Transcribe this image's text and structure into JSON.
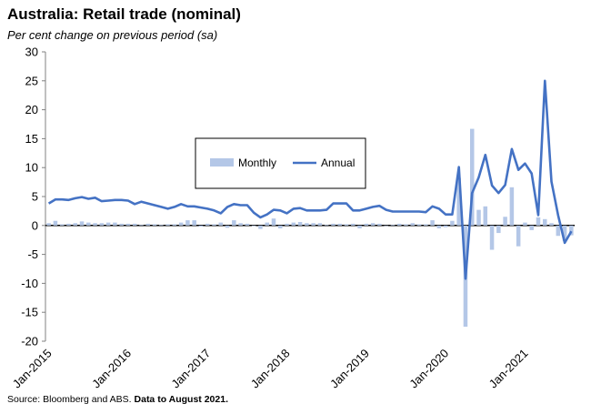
{
  "title": "Australia: Retail trade (nominal)",
  "subtitle": "Per cent change on previous period (sa)",
  "source_text": "Source: Bloomberg and ABS.",
  "source_bold": "Data to August 2021.",
  "colors": {
    "monthly": "#b4c7e7",
    "annual": "#4472c4"
  },
  "chart_data": {
    "type": "bar+line",
    "ylim": [
      -20,
      30
    ],
    "yticks": [
      -20,
      -15,
      -10,
      -5,
      0,
      5,
      10,
      15,
      20,
      25,
      30
    ],
    "xtick_labels": [
      "Jan-2015",
      "Jan-2016",
      "Jan-2017",
      "Jan-2018",
      "Jan-2019",
      "Jan-2020",
      "Jan-2021"
    ],
    "legend": {
      "position": "center",
      "entries": [
        "Monthly",
        "Annual"
      ]
    },
    "x": [
      "Jan-2015",
      "Feb-2015",
      "Mar-2015",
      "Apr-2015",
      "May-2015",
      "Jun-2015",
      "Jul-2015",
      "Aug-2015",
      "Sep-2015",
      "Oct-2015",
      "Nov-2015",
      "Dec-2015",
      "Jan-2016",
      "Feb-2016",
      "Mar-2016",
      "Apr-2016",
      "May-2016",
      "Jun-2016",
      "Jul-2016",
      "Aug-2016",
      "Sep-2016",
      "Oct-2016",
      "Nov-2016",
      "Dec-2016",
      "Jan-2017",
      "Feb-2017",
      "Mar-2017",
      "Apr-2017",
      "May-2017",
      "Jun-2017",
      "Jul-2017",
      "Aug-2017",
      "Sep-2017",
      "Oct-2017",
      "Nov-2017",
      "Dec-2017",
      "Jan-2018",
      "Feb-2018",
      "Mar-2018",
      "Apr-2018",
      "May-2018",
      "Jun-2018",
      "Jul-2018",
      "Aug-2018",
      "Sep-2018",
      "Oct-2018",
      "Nov-2018",
      "Dec-2018",
      "Jan-2019",
      "Feb-2019",
      "Mar-2019",
      "Apr-2019",
      "May-2019",
      "Jun-2019",
      "Jul-2019",
      "Aug-2019",
      "Sep-2019",
      "Oct-2019",
      "Nov-2019",
      "Dec-2019",
      "Jan-2020",
      "Feb-2020",
      "Mar-2020",
      "Apr-2020",
      "May-2020",
      "Jun-2020",
      "Jul-2020",
      "Aug-2020",
      "Sep-2020",
      "Oct-2020",
      "Nov-2020",
      "Dec-2020",
      "Jan-2021",
      "Feb-2021",
      "Mar-2021",
      "Apr-2021",
      "May-2021",
      "Jun-2021",
      "Jul-2021",
      "Aug-2021"
    ],
    "series": [
      {
        "name": "Monthly",
        "kind": "bar",
        "values": [
          0.4,
          0.8,
          0.2,
          0.3,
          0.4,
          0.7,
          0.5,
          0.4,
          0.4,
          0.5,
          0.5,
          0.3,
          0.3,
          0.3,
          0.1,
          0.3,
          0.2,
          0.1,
          0.2,
          0.2,
          0.5,
          0.9,
          0.9,
          -0.2,
          0.3,
          0.2,
          0.5,
          -0.4,
          0.9,
          0.4,
          0.3,
          -0.1,
          -0.6,
          0.5,
          1.2,
          -0.5,
          0.3,
          0.5,
          0.6,
          0.4,
          0.4,
          0.4,
          0.1,
          0.3,
          0.3,
          0.2,
          0.3,
          -0.5,
          0.3,
          0.4,
          0.3,
          0.0,
          0.1,
          0.3,
          0.2,
          0.4,
          0.2,
          0.2,
          0.9,
          -0.5,
          -0.3,
          0.8,
          8.2,
          -17.5,
          16.7,
          2.7,
          3.3,
          -4.2,
          -1.3,
          1.5,
          6.6,
          -3.6,
          0.5,
          -0.8,
          1.4,
          1.1,
          0.4,
          -1.8,
          -2.7,
          -1.7
        ]
      },
      {
        "name": "Annual",
        "kind": "line",
        "values": [
          3.8,
          4.5,
          4.5,
          4.4,
          4.7,
          4.9,
          4.6,
          4.8,
          4.2,
          4.3,
          4.4,
          4.4,
          4.3,
          3.7,
          4.1,
          3.8,
          3.5,
          3.2,
          2.9,
          3.2,
          3.7,
          3.3,
          3.3,
          3.1,
          2.9,
          2.6,
          2.1,
          3.2,
          3.7,
          3.5,
          3.5,
          2.2,
          1.4,
          1.9,
          2.7,
          2.6,
          2.1,
          2.9,
          3.0,
          2.6,
          2.6,
          2.6,
          2.7,
          3.8,
          3.8,
          3.8,
          2.6,
          2.6,
          2.9,
          3.2,
          3.4,
          2.7,
          2.4,
          2.4,
          2.4,
          2.4,
          2.4,
          2.3,
          3.3,
          2.9,
          1.9,
          1.9,
          10.1,
          -9.2,
          5.6,
          8.3,
          12.2,
          6.9,
          5.6,
          7.0,
          13.2,
          9.6,
          10.7,
          9.0,
          1.8,
          25.0,
          7.6,
          1.8,
          -3.0,
          -1.0
        ]
      }
    ]
  }
}
